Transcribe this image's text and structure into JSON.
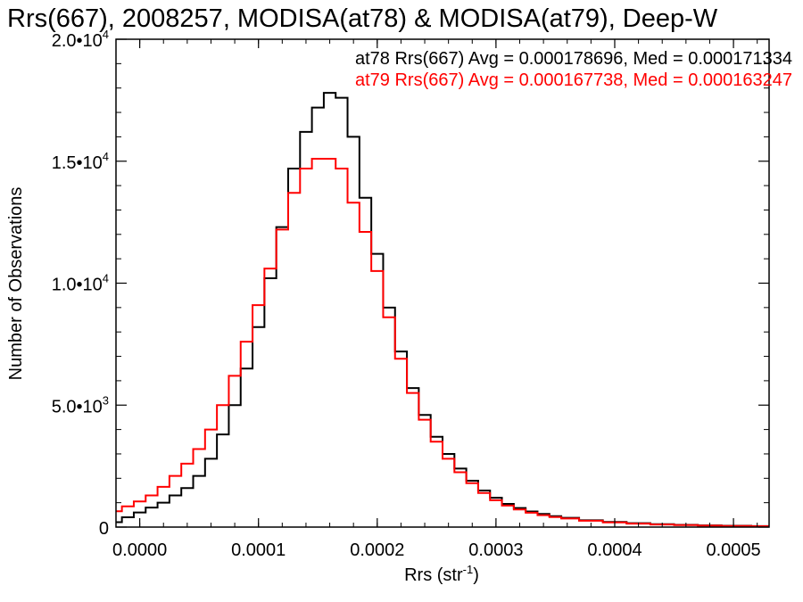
{
  "chart_data": {
    "type": "line",
    "title": "Rrs(667), 2008257, MODISA(at78) & MODISA(at79), Deep-W",
    "xlabel_main": "Rrs (str",
    "xlabel_sup": "-1",
    "xlabel_close": ")",
    "ylabel": "Number of Observations",
    "xlim": [
      -2e-05,
      0.00053
    ],
    "ylim": [
      0,
      20000
    ],
    "x_ticks": [
      {
        "value": 0.0,
        "label": "0.0000"
      },
      {
        "value": 0.0001,
        "label": "0.0001"
      },
      {
        "value": 0.0002,
        "label": "0.0002"
      },
      {
        "value": 0.0003,
        "label": "0.0003"
      },
      {
        "value": 0.0004,
        "label": "0.0004"
      },
      {
        "value": 0.0005,
        "label": "0.0005"
      }
    ],
    "y_ticks": [
      {
        "value": 0,
        "mant": "0",
        "exp": ""
      },
      {
        "value": 5000,
        "mant": "5.0•10",
        "exp": "3"
      },
      {
        "value": 10000,
        "mant": "1.0•10",
        "exp": "4"
      },
      {
        "value": 15000,
        "mant": "1.5•10",
        "exp": "4"
      },
      {
        "value": 20000,
        "mant": "2.0•10",
        "exp": "4"
      }
    ],
    "annotations": [
      "at78 Rrs(667) Avg = 0.000178696, Med = 0.000171334",
      "at79 Rrs(667) Avg = 0.000167738, Med = 0.000163247"
    ],
    "series": [
      {
        "color": "#000000",
        "x": [
          -2e-05,
          -1e-05,
          0.0,
          1e-05,
          2e-05,
          3e-05,
          4e-05,
          5e-05,
          6e-05,
          7e-05,
          8e-05,
          9e-05,
          0.0001,
          0.00011,
          0.00012,
          0.00013,
          0.00014,
          0.00015,
          0.00016,
          0.00017,
          0.00018,
          0.00019,
          0.0002,
          0.00021,
          0.00022,
          0.00023,
          0.00024,
          0.00025,
          0.00026,
          0.00027,
          0.00028,
          0.00029,
          0.0003,
          0.00031,
          0.00032,
          0.00033,
          0.00034,
          0.00035,
          0.00036,
          0.00038,
          0.0004,
          0.00042,
          0.00044,
          0.00046,
          0.00048,
          0.0005,
          0.00053
        ],
        "y": [
          200,
          400,
          600,
          800,
          1000,
          1300,
          1600,
          2100,
          2800,
          3800,
          5000,
          6500,
          8200,
          10200,
          12300,
          14700,
          16200,
          17200,
          17800,
          17600,
          16000,
          13500,
          11200,
          9000,
          7200,
          5700,
          4600,
          3700,
          3000,
          2400,
          1900,
          1500,
          1200,
          950,
          780,
          640,
          540,
          450,
          380,
          280,
          210,
          160,
          120,
          90,
          70,
          55,
          40
        ]
      },
      {
        "color": "#ff0000",
        "x": [
          -2e-05,
          -1e-05,
          0.0,
          1e-05,
          2e-05,
          3e-05,
          4e-05,
          5e-05,
          6e-05,
          7e-05,
          8e-05,
          9e-05,
          0.0001,
          0.00011,
          0.00012,
          0.00013,
          0.00014,
          0.00015,
          0.00016,
          0.00017,
          0.00018,
          0.00019,
          0.0002,
          0.00021,
          0.00022,
          0.00023,
          0.00024,
          0.00025,
          0.00026,
          0.00027,
          0.00028,
          0.00029,
          0.0003,
          0.00031,
          0.00032,
          0.00033,
          0.00034,
          0.00035,
          0.00036,
          0.00038,
          0.0004,
          0.00042,
          0.00044,
          0.00046,
          0.00048,
          0.0005,
          0.00053
        ],
        "y": [
          650,
          850,
          1050,
          1300,
          1650,
          2100,
          2600,
          3200,
          4000,
          5000,
          6200,
          7600,
          9100,
          10600,
          12200,
          13700,
          14700,
          15100,
          15100,
          14700,
          13300,
          12100,
          10500,
          8600,
          6900,
          5500,
          4400,
          3500,
          2800,
          2250,
          1800,
          1400,
          1100,
          880,
          720,
          590,
          490,
          410,
          350,
          260,
          190,
          140,
          105,
          80,
          60,
          48,
          35
        ]
      }
    ]
  }
}
